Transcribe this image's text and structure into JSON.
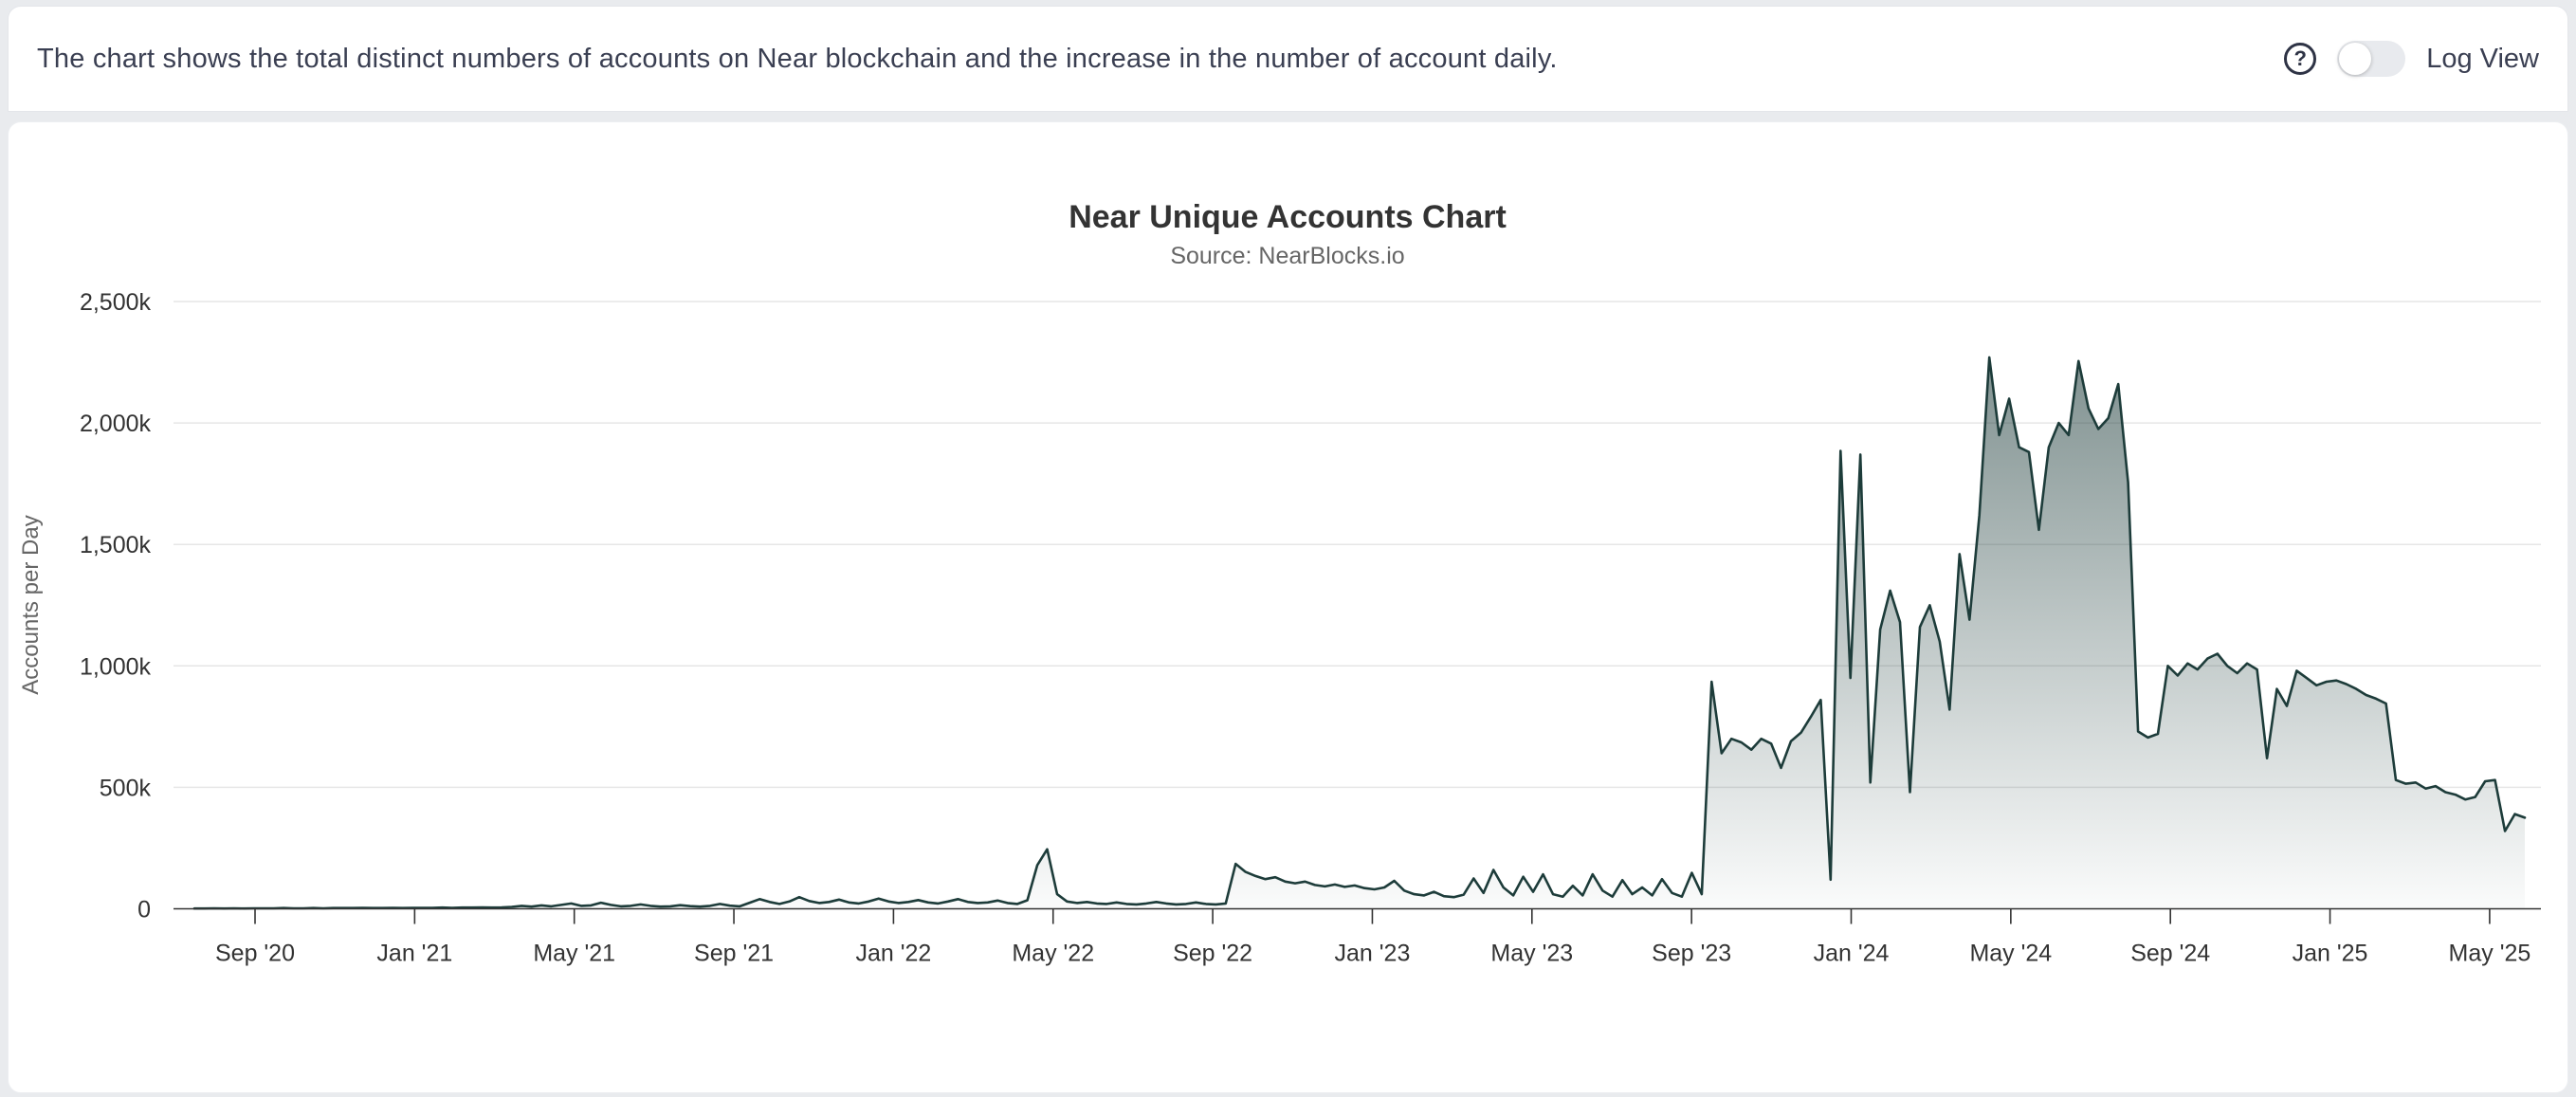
{
  "header": {
    "description": "The chart shows the total distinct numbers of accounts on Near blockchain and the increase in the number of account daily.",
    "help_icon": "?",
    "toggle": {
      "label": "Log View",
      "state": "off"
    }
  },
  "chart_data": {
    "type": "area",
    "title": "Near Unique Accounts Chart",
    "subtitle": "Source: NearBlocks.io",
    "ylabel": "Accounts per Day",
    "xlabel": "",
    "legend": "none",
    "grid": "horizontal",
    "ylim_k": [
      0,
      2500
    ],
    "y_tick_step_k": 500,
    "y_ticks": [
      "0",
      "500k",
      "1,000k",
      "1,500k",
      "2,000k",
      "2,500k"
    ],
    "x_ticks": [
      "Sep '20",
      "Jan '21",
      "May '21",
      "Sep '21",
      "Jan '22",
      "May '22",
      "Sep '22",
      "Jan '23",
      "May '23",
      "Sep '23",
      "Jan '24",
      "May '24",
      "Sep '24",
      "Jan '25",
      "May '25"
    ],
    "colors": {
      "line": "#1d3c3a",
      "fill_top": "#1d3c3a",
      "grid": "#e6e6e6",
      "axis": "#333333"
    },
    "series": [
      {
        "name": "Accounts per Day",
        "unit": "thousands_of_accounts",
        "start": "2020-07",
        "points_per_month": 4,
        "values_k": [
          1,
          1,
          2,
          1,
          2,
          1,
          2,
          2,
          2,
          3,
          2,
          2,
          3,
          2,
          3,
          3,
          3,
          4,
          3,
          3,
          4,
          3,
          4,
          4,
          4,
          5,
          4,
          5,
          5,
          6,
          5,
          6,
          8,
          12,
          9,
          14,
          10,
          16,
          22,
          12,
          14,
          25,
          16,
          10,
          12,
          18,
          12,
          9,
          10,
          15,
          11,
          9,
          12,
          20,
          13,
          10,
          25,
          40,
          28,
          20,
          30,
          48,
          32,
          24,
          28,
          38,
          26,
          22,
          30,
          42,
          30,
          24,
          28,
          36,
          26,
          22,
          30,
          40,
          28,
          24,
          26,
          34,
          24,
          20,
          35,
          180,
          245,
          60,
          30,
          24,
          28,
          22,
          20,
          26,
          20,
          18,
          22,
          28,
          22,
          18,
          20,
          26,
          20,
          18,
          22,
          185,
          152,
          135,
          122,
          130,
          112,
          105,
          112,
          98,
          92,
          100,
          90,
          96,
          85,
          80,
          88,
          115,
          75,
          60,
          55,
          70,
          52,
          48,
          58,
          125,
          65,
          160,
          88,
          55,
          132,
          70,
          142,
          60,
          50,
          95,
          55,
          142,
          75,
          50,
          118,
          60,
          88,
          55,
          122,
          65,
          50,
          148,
          60,
          935,
          640,
          700,
          685,
          655,
          700,
          680,
          580,
          690,
          725,
          790,
          860,
          120,
          1885,
          950,
          1870,
          520,
          1150,
          1310,
          1180,
          480,
          1160,
          1250,
          1100,
          820,
          1460,
          1190,
          1620,
          2270,
          1950,
          2100,
          1900,
          1880,
          1560,
          1900,
          2000,
          1950,
          2255,
          2060,
          1975,
          2020,
          2160,
          1755,
          730,
          705,
          720,
          1000,
          960,
          1010,
          985,
          1030,
          1050,
          1000,
          970,
          1010,
          985,
          620,
          905,
          835,
          980,
          950,
          920,
          935,
          940,
          925,
          905,
          880,
          865,
          845,
          530,
          515,
          520,
          495,
          505,
          480,
          470,
          450,
          460,
          525,
          530,
          320,
          390,
          375
        ]
      }
    ]
  }
}
